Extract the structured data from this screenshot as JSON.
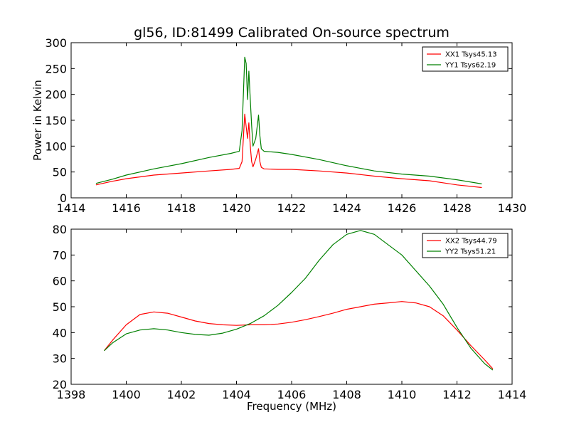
{
  "chart_data": [
    {
      "type": "line",
      "title": "gl56, ID:81499 Calibrated On-source spectrum",
      "xlabel": "",
      "ylabel": "Power in Kelvin",
      "xlim": [
        1414,
        1430
      ],
      "ylim": [
        0,
        300
      ],
      "xticks": [
        1414,
        1416,
        1418,
        1420,
        1422,
        1424,
        1426,
        1428,
        1430
      ],
      "yticks": [
        0,
        50,
        100,
        150,
        200,
        250,
        300
      ],
      "legend_position": "upper right",
      "series": [
        {
          "name": "XX1 Tsys45.13",
          "color": "#ff0000",
          "x": [
            1414.9,
            1415.5,
            1416.0,
            1417.0,
            1418.0,
            1419.0,
            1419.8,
            1420.1,
            1420.2,
            1420.3,
            1420.4,
            1420.45,
            1420.5,
            1420.55,
            1420.6,
            1420.7,
            1420.8,
            1420.85,
            1420.9,
            1421.0,
            1421.5,
            1422.0,
            1423.0,
            1424.0,
            1425.0,
            1426.0,
            1427.0,
            1428.0,
            1428.9
          ],
          "y": [
            25,
            32,
            37,
            44,
            48,
            52,
            55,
            57,
            70,
            162,
            115,
            145,
            100,
            70,
            60,
            75,
            95,
            70,
            59,
            56,
            55,
            55,
            52,
            48,
            42,
            37,
            33,
            25,
            20
          ]
        },
        {
          "name": "YY1 Tsys62.19",
          "color": "#008000",
          "x": [
            1414.9,
            1415.5,
            1416.0,
            1417.0,
            1418.0,
            1419.0,
            1419.8,
            1420.1,
            1420.2,
            1420.3,
            1420.35,
            1420.4,
            1420.45,
            1420.5,
            1420.55,
            1420.6,
            1420.7,
            1420.8,
            1420.85,
            1420.9,
            1421.0,
            1421.5,
            1422.0,
            1423.0,
            1424.0,
            1425.0,
            1426.0,
            1427.0,
            1428.0,
            1428.9
          ],
          "y": [
            28,
            36,
            44,
            56,
            66,
            78,
            86,
            90,
            130,
            272,
            260,
            190,
            245,
            190,
            140,
            100,
            115,
            160,
            120,
            95,
            90,
            88,
            84,
            74,
            62,
            52,
            46,
            42,
            35,
            27
          ]
        }
      ]
    },
    {
      "type": "line",
      "title": "",
      "xlabel": "Frequency (MHz)",
      "ylabel": "",
      "xlim": [
        1398,
        1414
      ],
      "ylim": [
        20,
        80
      ],
      "xticks": [
        1398,
        1400,
        1402,
        1404,
        1406,
        1408,
        1410,
        1412,
        1414
      ],
      "yticks": [
        20,
        30,
        40,
        50,
        60,
        70,
        80
      ],
      "legend_position": "upper right",
      "series": [
        {
          "name": "XX2 Tsys44.79",
          "color": "#ff0000",
          "x": [
            1399.2,
            1399.5,
            1400.0,
            1400.5,
            1401.0,
            1401.5,
            1402.0,
            1402.5,
            1403.0,
            1403.5,
            1404.0,
            1404.5,
            1405.0,
            1405.5,
            1406.0,
            1406.5,
            1407.0,
            1407.5,
            1408.0,
            1408.5,
            1409.0,
            1409.5,
            1410.0,
            1410.5,
            1411.0,
            1411.5,
            1412.0,
            1412.5,
            1413.0,
            1413.3
          ],
          "y": [
            33,
            37,
            43,
            47,
            48,
            47.5,
            46,
            44.5,
            43.5,
            43,
            42.8,
            43,
            43,
            43.3,
            44,
            45,
            46.2,
            47.5,
            49,
            50,
            51,
            51.5,
            52,
            51.5,
            50,
            46.5,
            41,
            35,
            29.5,
            26
          ]
        },
        {
          "name": "YY2 Tsys51.21",
          "color": "#008000",
          "x": [
            1399.2,
            1399.5,
            1400.0,
            1400.5,
            1401.0,
            1401.5,
            1402.0,
            1402.5,
            1403.0,
            1403.5,
            1404.0,
            1404.5,
            1405.0,
            1405.5,
            1406.0,
            1406.5,
            1407.0,
            1407.5,
            1408.0,
            1408.5,
            1409.0,
            1409.5,
            1410.0,
            1410.5,
            1411.0,
            1411.5,
            1412.0,
            1412.5,
            1413.0,
            1413.3
          ],
          "y": [
            33,
            36,
            39.5,
            41,
            41.5,
            41,
            40,
            39.3,
            39,
            39.8,
            41.3,
            43.5,
            46.5,
            50.5,
            55.5,
            61,
            68,
            74,
            78,
            79.5,
            78,
            74,
            70,
            64,
            58,
            51,
            42,
            34,
            28,
            25.5
          ]
        }
      ]
    }
  ]
}
